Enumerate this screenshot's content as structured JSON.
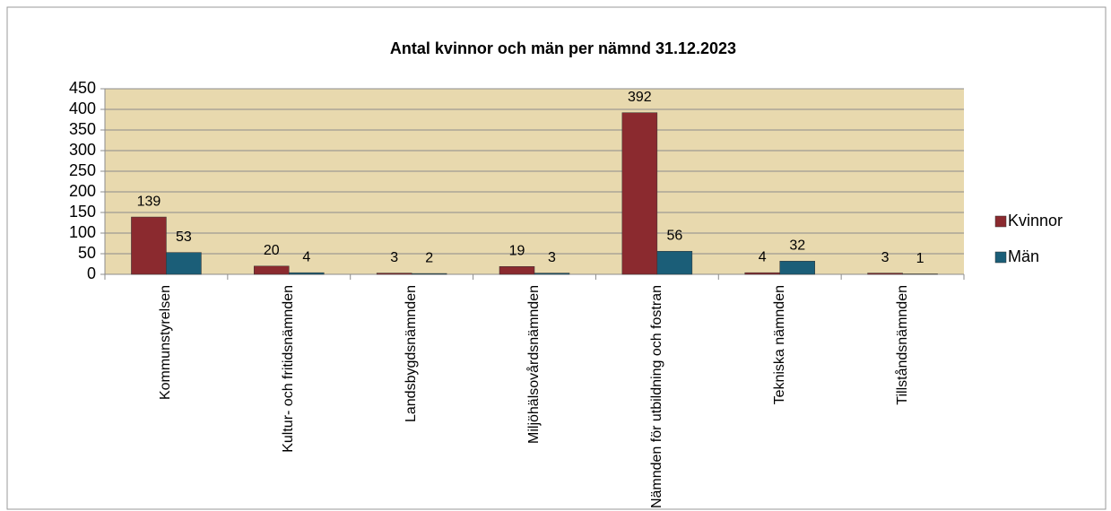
{
  "chart_data": {
    "type": "bar",
    "title": "Antal kvinnor och män per nämnd 31.12.2023",
    "categories": [
      "Kommunstyrelsen",
      "Kultur- och fritidsnämnden",
      "Landsbygdsnämnden",
      "Miljöhälsovårdsnämnden",
      "Nämnden för utbildning och fostran",
      "Tekniska nämnden",
      "Tillståndsnämnden"
    ],
    "series": [
      {
        "name": "Kvinnor",
        "color": "#8b2a2f",
        "values": [
          139,
          20,
          3,
          19,
          392,
          4,
          3
        ]
      },
      {
        "name": "Män",
        "color": "#1b5e78",
        "values": [
          53,
          4,
          2,
          3,
          56,
          32,
          1
        ]
      }
    ],
    "ylim": [
      0,
      450
    ],
    "yticks": [
      0,
      50,
      100,
      150,
      200,
      250,
      300,
      350,
      400,
      450
    ],
    "grid": true,
    "legend": "right"
  }
}
